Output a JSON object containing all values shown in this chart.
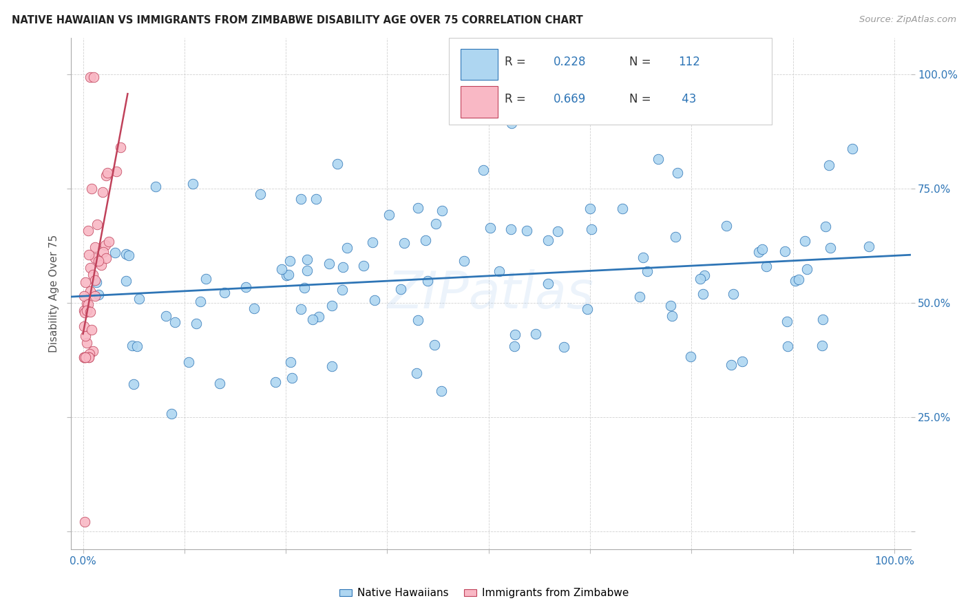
{
  "title": "NATIVE HAWAIIAN VS IMMIGRANTS FROM ZIMBABWE DISABILITY AGE OVER 75 CORRELATION CHART",
  "source": "Source: ZipAtlas.com",
  "ylabel": "Disability Age Over 75",
  "r_blue": 0.228,
  "n_blue": 112,
  "r_pink": 0.669,
  "n_pink": 43,
  "blue_color": "#aed6f1",
  "pink_color": "#f9b8c5",
  "blue_line_color": "#2e75b6",
  "pink_line_color": "#c0415a",
  "legend_label_blue": "Native Hawaiians",
  "legend_label_pink": "Immigrants from Zimbabwe",
  "watermark": "ZIPatlas",
  "blue_seed": 77,
  "pink_seed": 88
}
